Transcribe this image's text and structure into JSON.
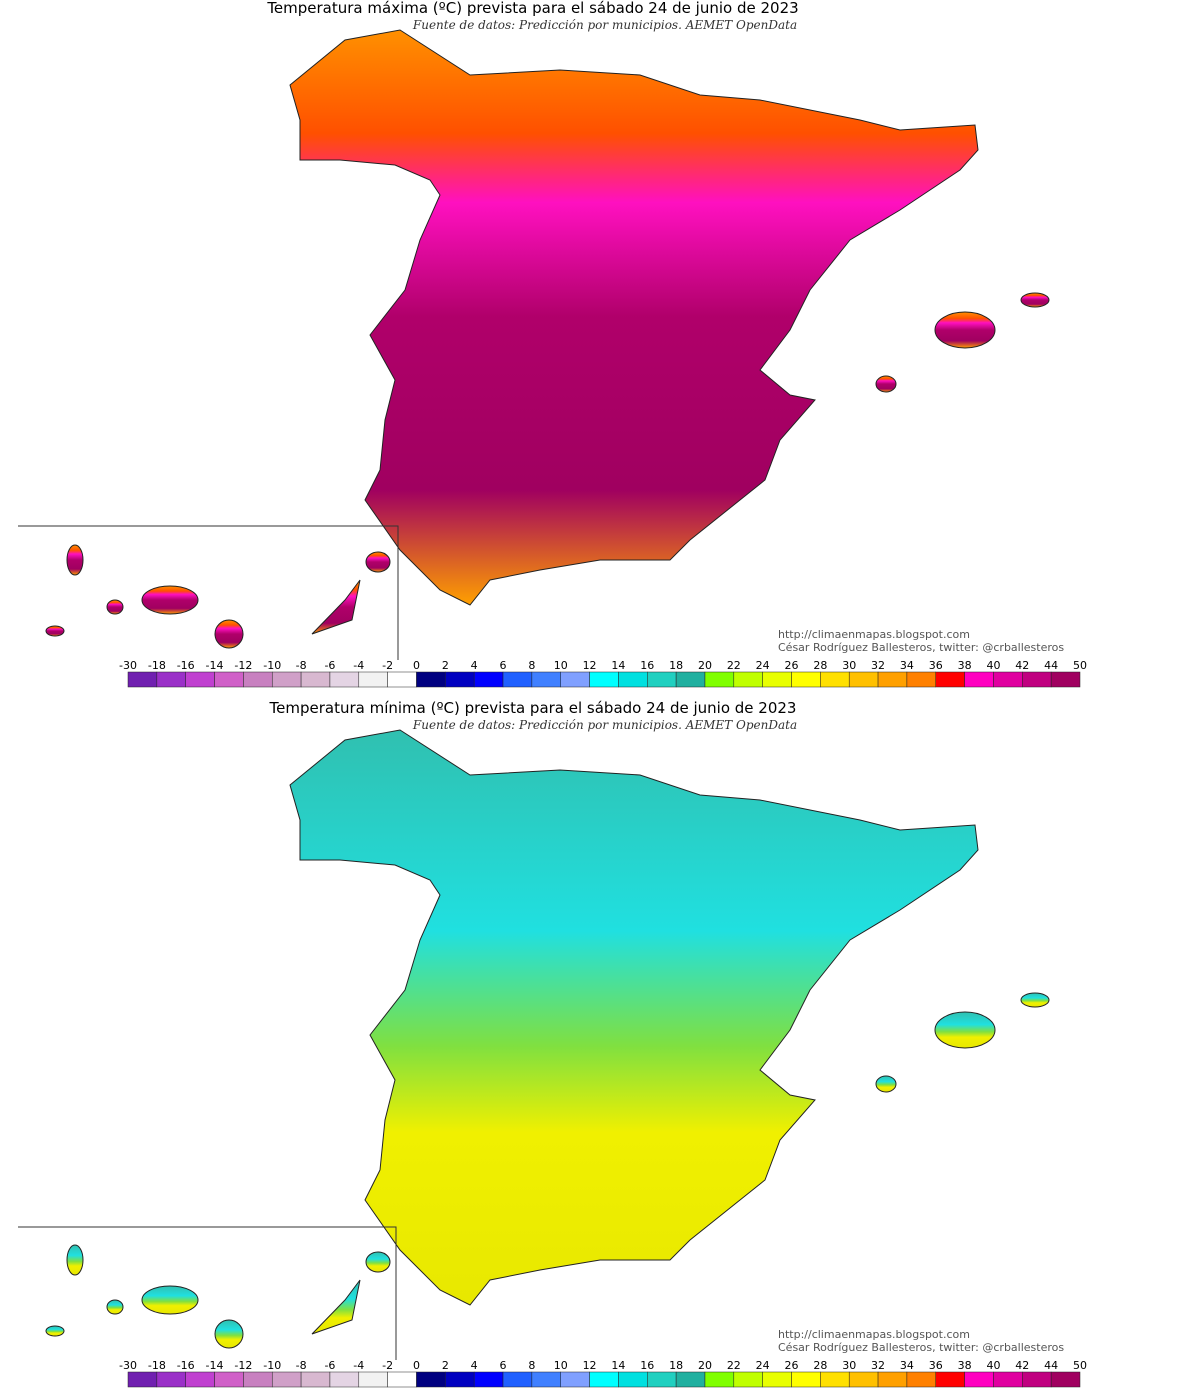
{
  "maps": [
    {
      "title": "Temperatura máxima (ºC) prevista para el sábado 24 de junio de 2023",
      "source": "Fuente de datos: Predicción por municipios. AEMET OpenData",
      "url": "http://climaenmapas.blogspot.com",
      "author": "César Rodríguez Ballesteros, twitter: @crballesteros"
    },
    {
      "title": "Temperatura mínima (ºC) prevista para el sábado 24 de junio de 2023",
      "source": "Fuente de datos: Predicción por municipios. AEMET OpenData",
      "url": "http://climaenmapas.blogspot.com",
      "author": "César Rodríguez Ballesteros, twitter: @crballesteros"
    }
  ],
  "legend": {
    "ticks": [
      -30,
      -18,
      -16,
      -14,
      -12,
      -10,
      -8,
      -6,
      -4,
      -2,
      0,
      2,
      4,
      6,
      8,
      10,
      12,
      14,
      16,
      18,
      20,
      22,
      24,
      26,
      28,
      30,
      32,
      34,
      36,
      38,
      40,
      42,
      44,
      50
    ],
    "colors": [
      "#7020b0",
      "#9a30c8",
      "#c040d0",
      "#d060c8",
      "#c880c0",
      "#d0a0c8",
      "#d8b8d0",
      "#e4d4e4",
      "#f2f2f2",
      "#ffffff",
      "#000080",
      "#0000c0",
      "#0000ff",
      "#2060ff",
      "#4080ff",
      "#80a0ff",
      "#00ffff",
      "#00e0e0",
      "#20d0c0",
      "#20b0a0",
      "#80ff00",
      "#c0ff00",
      "#e8ff00",
      "#ffff00",
      "#ffe000",
      "#ffc000",
      "#ffa000",
      "#ff8000",
      "#ff0000",
      "#ff00c0",
      "#e000a0",
      "#c00080",
      "#a00060"
    ]
  }
}
